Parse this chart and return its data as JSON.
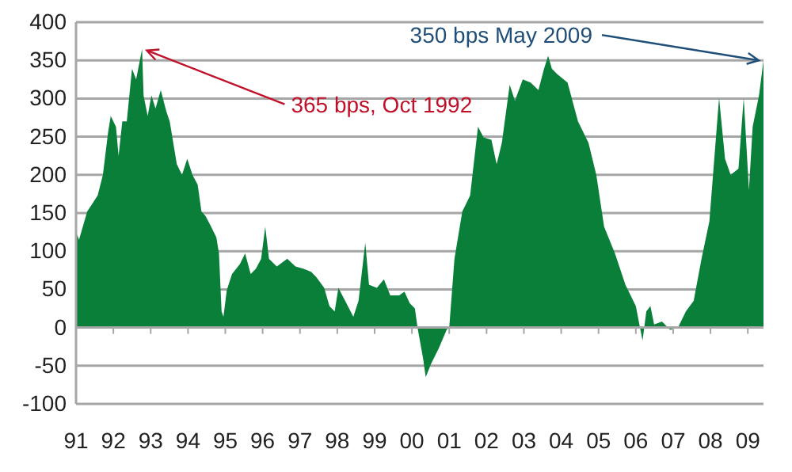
{
  "chart_data": {
    "type": "area",
    "xlim": [
      1991,
      2009.42
    ],
    "ylim": [
      -100,
      400
    ],
    "yticks": [
      -100,
      -50,
      0,
      50,
      100,
      150,
      200,
      250,
      300,
      350,
      400
    ],
    "xticks": [
      {
        "value": 1991,
        "label": "91"
      },
      {
        "value": 1992,
        "label": "92"
      },
      {
        "value": 1993,
        "label": "93"
      },
      {
        "value": 1994,
        "label": "94"
      },
      {
        "value": 1995,
        "label": "95"
      },
      {
        "value": 1996,
        "label": "96"
      },
      {
        "value": 1997,
        "label": "97"
      },
      {
        "value": 1998,
        "label": "98"
      },
      {
        "value": 1999,
        "label": "99"
      },
      {
        "value": 2000,
        "label": "00"
      },
      {
        "value": 2001,
        "label": "01"
      },
      {
        "value": 2002,
        "label": "02"
      },
      {
        "value": 2003,
        "label": "03"
      },
      {
        "value": 2004,
        "label": "04"
      },
      {
        "value": 2005,
        "label": "05"
      },
      {
        "value": 2006,
        "label": "06"
      },
      {
        "value": 2007,
        "label": "07"
      },
      {
        "value": 2008,
        "label": "08"
      },
      {
        "value": 2009,
        "label": "09"
      }
    ],
    "grid": "y",
    "x": [
      1991.0,
      1991.08,
      1991.3,
      1991.58,
      1991.72,
      1991.86,
      1991.93,
      1992.07,
      1992.14,
      1992.24,
      1992.36,
      1992.5,
      1992.61,
      1992.77,
      1992.81,
      1992.92,
      1993.02,
      1993.13,
      1993.27,
      1993.42,
      1993.51,
      1993.7,
      1993.84,
      1993.98,
      1994.12,
      1994.26,
      1994.36,
      1994.47,
      1994.62,
      1994.76,
      1994.83,
      1994.9,
      1994.95,
      1995.04,
      1995.18,
      1995.39,
      1995.53,
      1995.68,
      1995.82,
      1995.96,
      1996.07,
      1996.17,
      1996.38,
      1996.66,
      1996.88,
      1997.09,
      1997.3,
      1997.44,
      1997.65,
      1997.79,
      1997.93,
      1998.03,
      1998.21,
      1998.43,
      1998.57,
      1998.75,
      1998.85,
      1999.06,
      1999.25,
      1999.42,
      1999.66,
      1999.8,
      1999.94,
      2000.08,
      2000.15,
      2000.3,
      2000.37,
      2000.51,
      2000.72,
      2000.93,
      2001.0,
      2001.14,
      2001.35,
      2001.56,
      2001.77,
      2001.92,
      2002.13,
      2002.27,
      2002.41,
      2002.62,
      2002.76,
      2002.97,
      2003.18,
      2003.39,
      2003.54,
      2003.65,
      2003.75,
      2003.89,
      2004.17,
      2004.45,
      2004.73,
      2004.94,
      2005.15,
      2005.44,
      2005.72,
      2006.0,
      2006.11,
      2006.18,
      2006.28,
      2006.39,
      2006.49,
      2006.7,
      2006.92,
      2007.13,
      2007.34,
      2007.55,
      2007.76,
      2007.97,
      2008.23,
      2008.39,
      2008.54,
      2008.75,
      2008.89,
      2009.03,
      2009.13,
      2009.3,
      2009.42
    ],
    "series": [
      {
        "color": "#0a7f3a",
        "values": [
          125,
          115,
          152,
          173,
          200,
          256,
          277,
          263,
          225,
          270,
          270,
          339,
          325,
          365,
          304,
          277,
          304,
          287,
          311,
          283,
          270,
          214,
          200,
          221,
          200,
          187,
          152,
          146,
          132,
          118,
          97,
          21,
          14,
          49,
          70,
          83,
          97,
          70,
          77,
          90,
          132,
          90,
          80,
          90,
          80,
          77,
          73,
          66,
          52,
          28,
          21,
          52,
          35,
          14,
          35,
          111,
          56,
          52,
          63,
          42,
          42,
          47,
          32,
          25,
          0,
          -41,
          -65,
          -48,
          -27,
          -3,
          0,
          90,
          152,
          173,
          263,
          249,
          246,
          214,
          242,
          318,
          297,
          325,
          321,
          311,
          339,
          356,
          339,
          332,
          321,
          270,
          242,
          200,
          132,
          97,
          56,
          28,
          0,
          -17,
          21,
          28,
          4,
          8,
          -3,
          0,
          21,
          35,
          90,
          139,
          301,
          221,
          200,
          208,
          301,
          180,
          263,
          304,
          350
        ]
      }
    ],
    "annotations": [
      {
        "text": "365 bps, Oct 1992",
        "x": 1992.77,
        "y": 365
      },
      {
        "text": "350 bps May 2009",
        "x": 2009.42,
        "y": 350
      }
    ]
  }
}
